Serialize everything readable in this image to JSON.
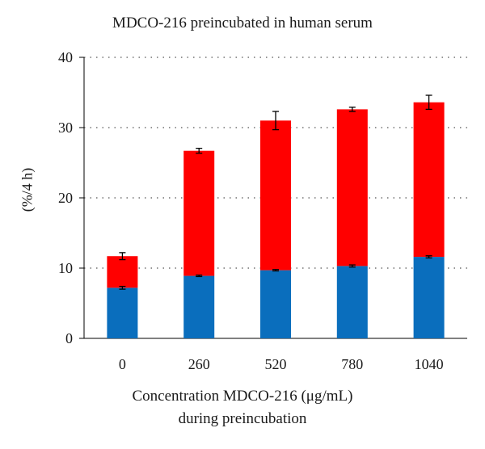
{
  "chart_data": {
    "type": "bar",
    "stacked": true,
    "title": "MDCO-216 preincubated in human serum",
    "ylabel": "(%/4 h)",
    "xlabel_lines": [
      "Concentration MDCO-216 (μg/mL)",
      "during preincubation"
    ],
    "categories": [
      "0",
      "260",
      "520",
      "780",
      "1040"
    ],
    "ylim": [
      0,
      40
    ],
    "yticks": [
      0,
      10,
      20,
      30,
      40
    ],
    "grid": "horizontal dotted",
    "series": [
      {
        "color": "#0a6ebd",
        "values": [
          7.2,
          8.9,
          9.7,
          10.3,
          11.6
        ],
        "errors": [
          0.2,
          0.1,
          0.1,
          0.15,
          0.15
        ]
      },
      {
        "color": "#ff0000",
        "values": [
          4.5,
          17.8,
          21.3,
          22.3,
          22.0
        ],
        "errors": [
          0.5,
          0.35,
          1.3,
          0.3,
          1.0
        ]
      }
    ]
  }
}
